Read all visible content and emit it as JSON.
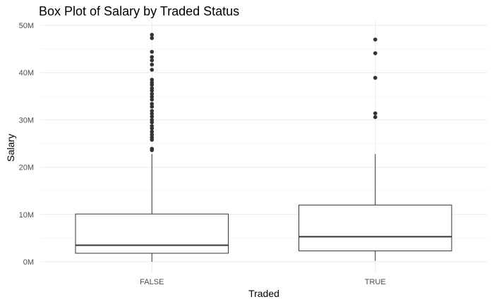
{
  "chart_data": {
    "type": "box",
    "title": "Box Plot of Salary by Traded Status",
    "xlabel": "Traded",
    "ylabel": "Salary",
    "ylim": [
      0,
      50000000
    ],
    "y_ticks": [
      0,
      10000000,
      20000000,
      30000000,
      40000000,
      50000000
    ],
    "y_tick_labels": [
      "0M",
      "10M",
      "20M",
      "30M",
      "40M",
      "50M"
    ],
    "grid": true,
    "categories": [
      "FALSE",
      "TRUE"
    ],
    "boxes": [
      {
        "category": "FALSE",
        "whisker_low": 0,
        "q1": 1800000,
        "median": 3500000,
        "q3": 10100000,
        "whisker_high": 22800000,
        "outliers": [
          23600000,
          23900000,
          25800000,
          26300000,
          26900000,
          27500000,
          28200000,
          28700000,
          29500000,
          30000000,
          30700000,
          31300000,
          31900000,
          32800000,
          33400000,
          34300000,
          34900000,
          35500000,
          36200000,
          36700000,
          37400000,
          37900000,
          38500000,
          40600000,
          41700000,
          42600000,
          43300000,
          44400000,
          47300000,
          48000000
        ]
      },
      {
        "category": "TRUE",
        "whisker_low": 200000,
        "q1": 2300000,
        "median": 5300000,
        "q3": 12000000,
        "whisker_high": 22800000,
        "outliers": [
          30600000,
          31400000,
          38900000,
          44100000,
          47000000
        ]
      }
    ]
  }
}
